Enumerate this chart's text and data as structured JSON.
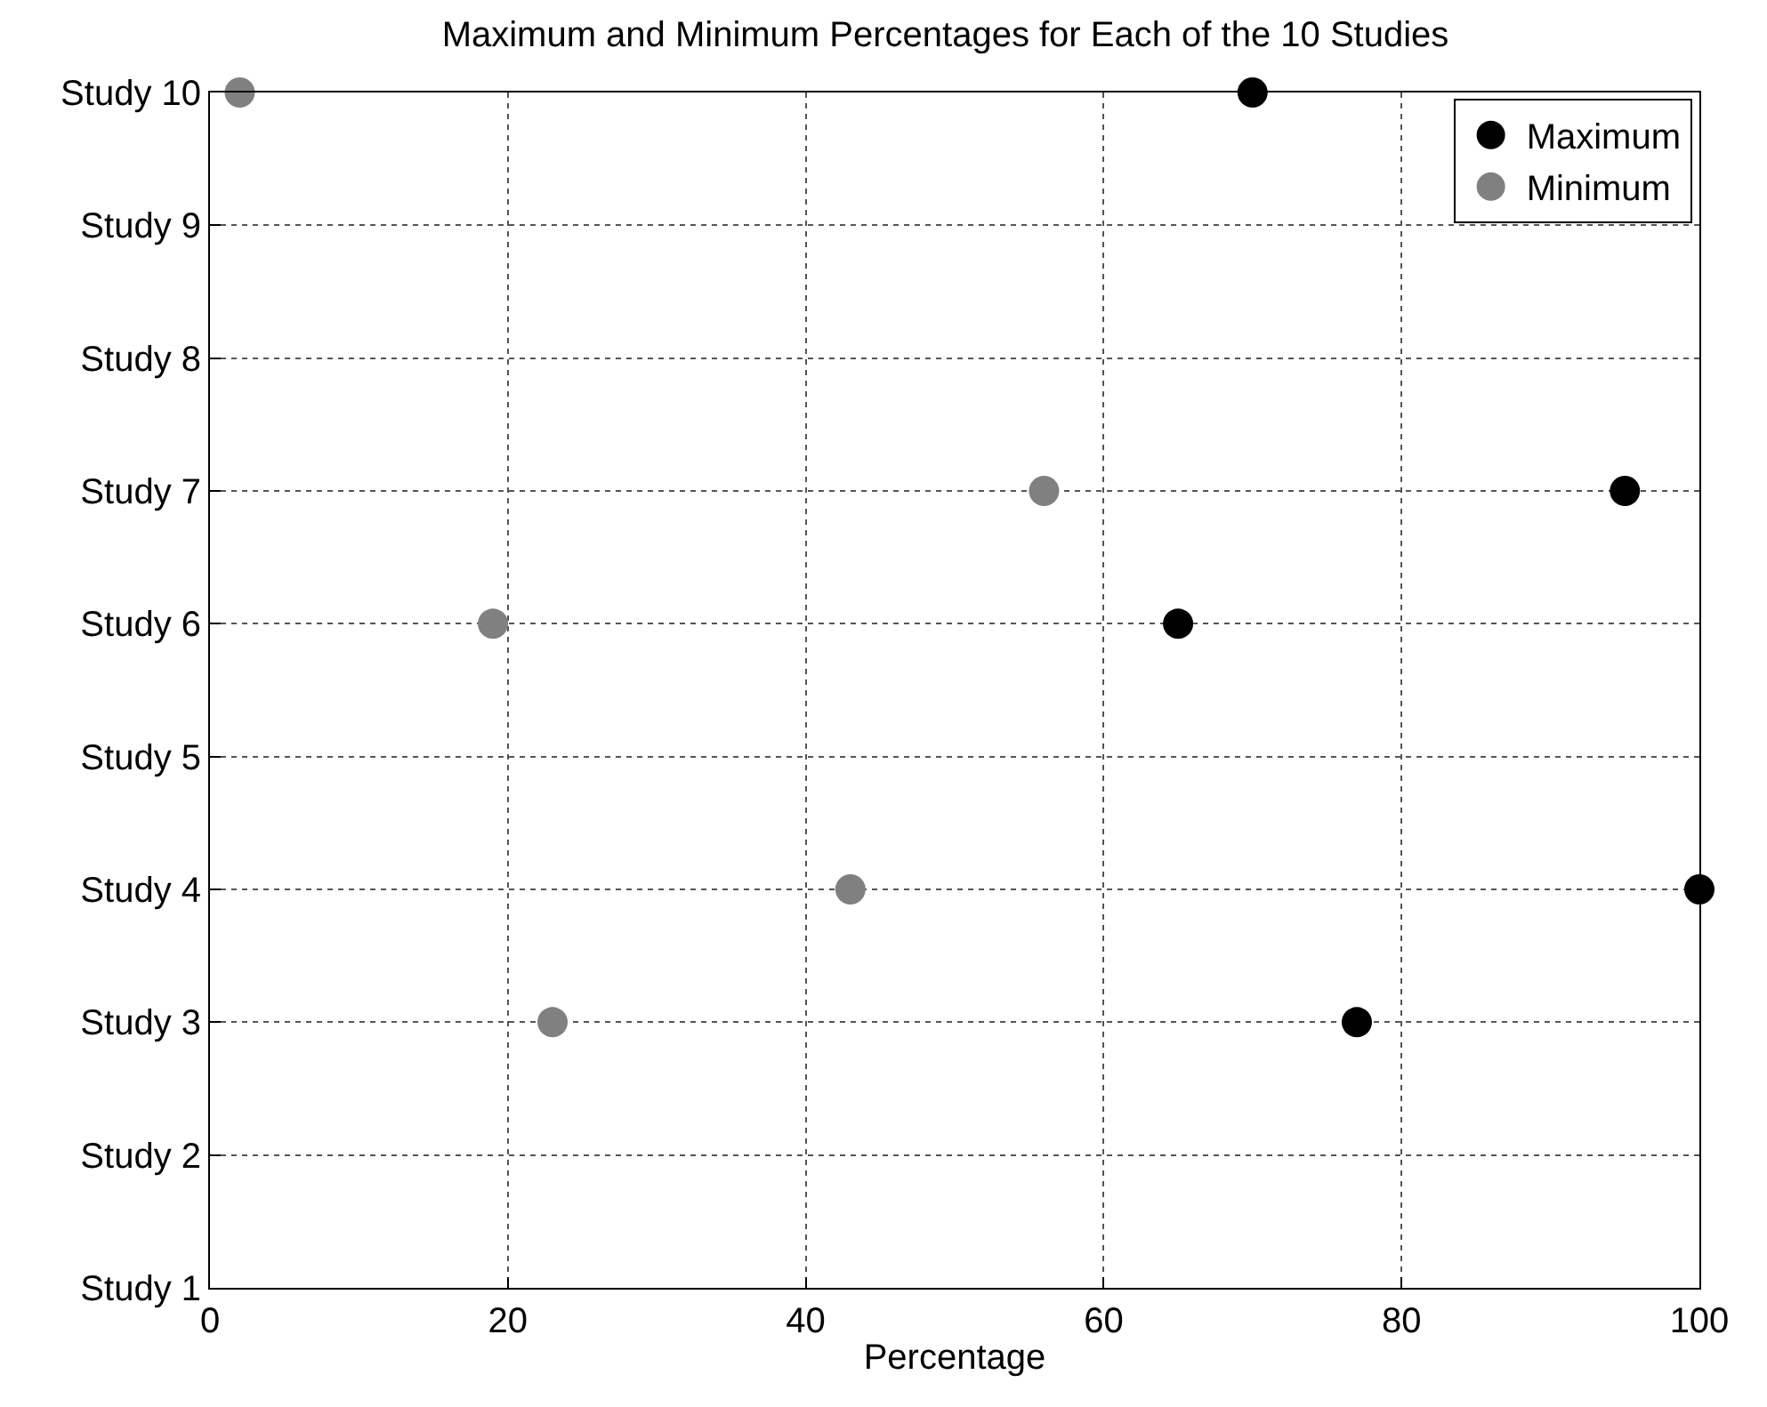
{
  "chart_data": {
    "type": "scatter",
    "orientation": "horizontal",
    "title": "Maximum and Minimum Percentages for Each of the 10 Studies",
    "xlabel": "Percentage",
    "xlim": [
      0,
      100
    ],
    "xticks": [
      0,
      20,
      40,
      60,
      80,
      100
    ],
    "categories": [
      "Study 10",
      "Study 9",
      "Study 8",
      "Study 7",
      "Study 6",
      "Study 5",
      "Study 4",
      "Study 3",
      "Study 2",
      "Study 1"
    ],
    "series": [
      {
        "name": "Maximum",
        "color": "#000000",
        "values": [
          70,
          null,
          null,
          95,
          65,
          null,
          100,
          77,
          null,
          null
        ]
      },
      {
        "name": "Minimum",
        "color": "#808080",
        "values": [
          2,
          null,
          null,
          56,
          19,
          null,
          43,
          23,
          null,
          null
        ]
      }
    ],
    "grid": true,
    "legend": "top right",
    "marker": "circle"
  }
}
